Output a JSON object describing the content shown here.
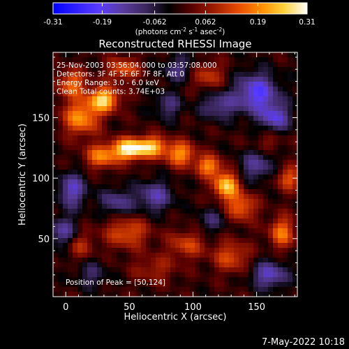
{
  "chart_data": {
    "type": "heatmap",
    "title": "Reconstructed RHESSI Image",
    "xlabel": "Heliocentric X (arcsec)",
    "ylabel": "Heliocentric Y (arcsec)",
    "xlim": [
      -10,
      182
    ],
    "ylim": [
      2,
      204
    ],
    "xticks": [
      0,
      50,
      100,
      150
    ],
    "xtick_labels": [
      "0",
      "50",
      "100",
      "150"
    ],
    "yticks": [
      50,
      100,
      150
    ],
    "ytick_labels": [
      "50",
      "100",
      "150"
    ],
    "colorbar": {
      "range": [
        -0.31,
        0.31
      ],
      "ticks": [
        -0.31,
        -0.19,
        -0.062,
        0.062,
        0.19,
        0.31
      ],
      "tick_labels": [
        "-0.31",
        "-0.19",
        "-0.062",
        "0.062",
        "0.19",
        "0.31"
      ],
      "units_label": "(photons cm",
      "units_exp1": "-2",
      "units_mid": " s",
      "units_exp2": "-1",
      "units_end": " asec",
      "units_exp3": "-2",
      "units_close": ")",
      "colors": [
        "#0000ff",
        "#3020ff",
        "#5a3cff",
        "#5a3ca0",
        "#3c2860",
        "#000000",
        "#5a0000",
        "#a01e00",
        "#e64b00",
        "#ff8c00",
        "#ffd23c",
        "#ffffff"
      ]
    },
    "annotations": [
      "25-Nov-2003 03:56:04.000 to 03:57:08.000",
      "Detectors: 3F 4F 5F 6F 7F 8F, Att 0",
      "Energy Range: 3.0 - 6.0 keV",
      "Clean    Total counts: 3.74E+03"
    ],
    "peak_label": "Position of Peak = [50,124]",
    "peak": [
      50,
      124
    ],
    "peak_value": 0.31,
    "sources": [
      {
        "x": 50,
        "y": 124,
        "amp": 0.31,
        "sx": 9,
        "sy": 6
      },
      {
        "x": 68,
        "y": 126,
        "amp": 0.22,
        "sx": 8,
        "sy": 6
      },
      {
        "x": 28,
        "y": 118,
        "amp": 0.18,
        "sx": 9,
        "sy": 7
      },
      {
        "x": 90,
        "y": 120,
        "amp": 0.2,
        "sx": 8,
        "sy": 7
      },
      {
        "x": 112,
        "y": 110,
        "amp": 0.19,
        "sx": 7,
        "sy": 6
      },
      {
        "x": 126,
        "y": 94,
        "amp": 0.25,
        "sx": 7,
        "sy": 8
      },
      {
        "x": 138,
        "y": 76,
        "amp": 0.16,
        "sx": 8,
        "sy": 8
      },
      {
        "x": 12,
        "y": 150,
        "amp": 0.2,
        "sx": 10,
        "sy": 10
      },
      {
        "x": 30,
        "y": 165,
        "amp": 0.26,
        "sx": 8,
        "sy": 7
      },
      {
        "x": 5,
        "y": 178,
        "amp": 0.16,
        "sx": 8,
        "sy": 8
      },
      {
        "x": 45,
        "y": 190,
        "amp": 0.14,
        "sx": 9,
        "sy": 7
      },
      {
        "x": 170,
        "y": 55,
        "amp": 0.17,
        "sx": 7,
        "sy": 9
      },
      {
        "x": 175,
        "y": 100,
        "amp": 0.14,
        "sx": 7,
        "sy": 7
      },
      {
        "x": 48,
        "y": 55,
        "amp": 0.14,
        "sx": 12,
        "sy": 9
      },
      {
        "x": 95,
        "y": 45,
        "amp": 0.12,
        "sx": 10,
        "sy": 8
      },
      {
        "x": 130,
        "y": 35,
        "amp": 0.13,
        "sx": 10,
        "sy": 9
      },
      {
        "x": 10,
        "y": 45,
        "amp": 0.1,
        "sx": 8,
        "sy": 8
      },
      {
        "x": 70,
        "y": 25,
        "amp": 0.08,
        "sx": 12,
        "sy": 8
      },
      {
        "x": 160,
        "y": 130,
        "amp": 0.06,
        "sx": 8,
        "sy": 6
      },
      {
        "x": 110,
        "y": 185,
        "amp": 0.12,
        "sx": 10,
        "sy": 8
      },
      {
        "x": 5,
        "y": 90,
        "amp": -0.16,
        "sx": 8,
        "sy": 10
      },
      {
        "x": 40,
        "y": 80,
        "amp": -0.12,
        "sx": 9,
        "sy": 8
      },
      {
        "x": 70,
        "y": 85,
        "amp": -0.14,
        "sx": 10,
        "sy": 9
      },
      {
        "x": 150,
        "y": 170,
        "amp": -0.2,
        "sx": 12,
        "sy": 12
      },
      {
        "x": 165,
        "y": 150,
        "amp": -0.16,
        "sx": 8,
        "sy": 8
      },
      {
        "x": 120,
        "y": 160,
        "amp": -0.12,
        "sx": 10,
        "sy": 8
      },
      {
        "x": 80,
        "y": 160,
        "amp": -0.1,
        "sx": 8,
        "sy": 8
      },
      {
        "x": 90,
        "y": 190,
        "amp": -0.11,
        "sx": 10,
        "sy": 8
      },
      {
        "x": 160,
        "y": 20,
        "amp": -0.16,
        "sx": 10,
        "sy": 8
      },
      {
        "x": 150,
        "y": 110,
        "amp": -0.12,
        "sx": 10,
        "sy": 9
      },
      {
        "x": -2,
        "y": 55,
        "amp": -0.14,
        "sx": 8,
        "sy": 9
      },
      {
        "x": 115,
        "y": 65,
        "amp": -0.08,
        "sx": 8,
        "sy": 8
      },
      {
        "x": 20,
        "y": 20,
        "amp": -0.08,
        "sx": 9,
        "sy": 8
      }
    ]
  },
  "footer": {
    "date": "7-May-2022 10:18"
  }
}
